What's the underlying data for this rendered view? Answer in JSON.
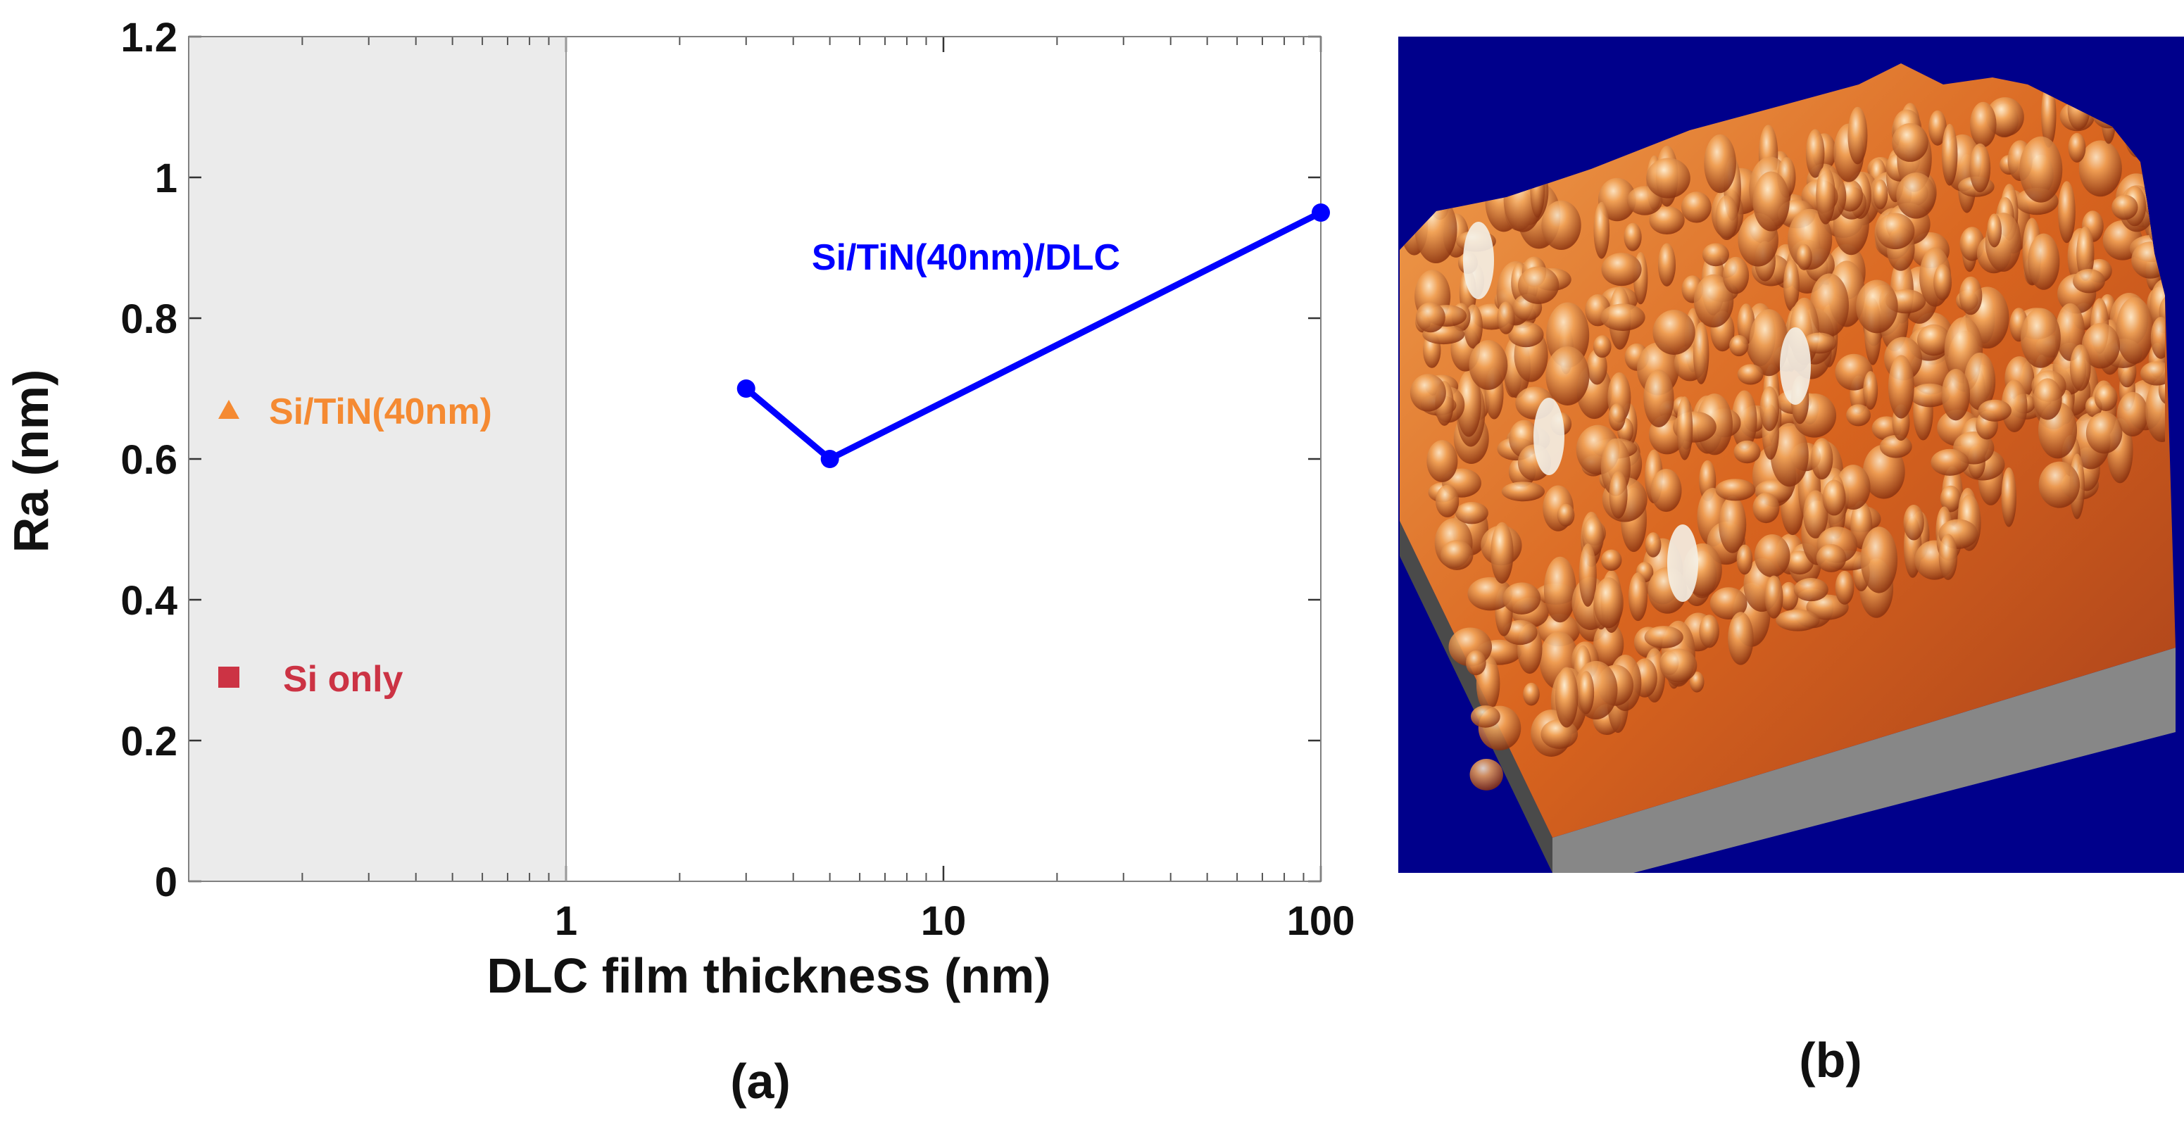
{
  "chart_data": {
    "type": "line",
    "panel_label": "(a)",
    "title": "",
    "xlabel": "DLC film thickness (nm)",
    "ylabel": "Ra (nm)",
    "xscale": "log",
    "xlim": [
      0.1,
      100
    ],
    "ylim": [
      0,
      1.2
    ],
    "x_ticks": [
      {
        "value": 1,
        "label": "1"
      },
      {
        "value": 10,
        "label": "10"
      },
      {
        "value": 100,
        "label": "100"
      }
    ],
    "y_ticks": [
      {
        "value": 0,
        "label": "0"
      },
      {
        "value": 0.2,
        "label": "0.2"
      },
      {
        "value": 0.4,
        "label": "0.4"
      },
      {
        "value": 0.6,
        "label": "0.6"
      },
      {
        "value": 0.8,
        "label": "0.8"
      },
      {
        "value": 1.0,
        "label": "1"
      },
      {
        "value": 1.2,
        "label": "1.2"
      }
    ],
    "shaded_region": {
      "x_from": 0.1,
      "x_to": 1,
      "color": "#ebebeb"
    },
    "series": [
      {
        "name": "Si/TiN(40nm)/DLC",
        "color": "#0000ff",
        "marker": "circle",
        "x": [
          3,
          5,
          100
        ],
        "y": [
          0.7,
          0.6,
          0.95
        ]
      }
    ],
    "reference_points": [
      {
        "name": "Si/TiN(40nm)",
        "value": 0.67,
        "marker": "triangle",
        "color": "#f58a32"
      },
      {
        "name": "Si only",
        "value": 0.29,
        "marker": "square",
        "color": "#cc3344"
      }
    ],
    "grid": false
  },
  "panel_b": {
    "label": "(b)",
    "image": "afm-3d-surface-topography",
    "colors": {
      "background": "#00008b",
      "surface": "#d2691e",
      "base": "#808080"
    }
  }
}
